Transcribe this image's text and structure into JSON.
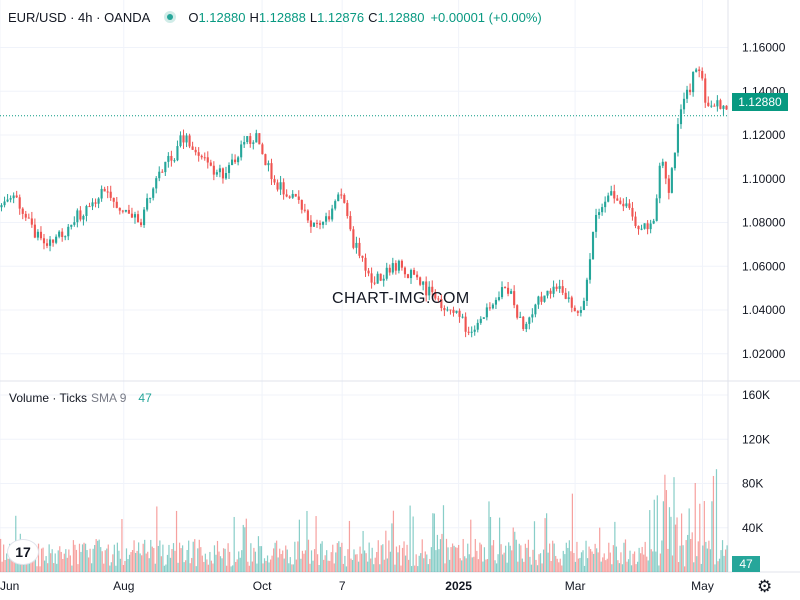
{
  "legend": {
    "symbol": "EUR/USD · 4h · OANDA",
    "o_label": "O",
    "o_value": "1.12880",
    "h_label": "H",
    "h_value": "1.12888",
    "l_label": "L",
    "l_value": "1.12876",
    "c_label": "C",
    "c_value": "1.12880",
    "change": "+0.00001 (+0.00%)"
  },
  "volume_legend": {
    "label": "Volume · Ticks",
    "sma": "SMA 9",
    "sma_value": "47"
  },
  "last_price_tag": "1.12880",
  "volume_tag": "47",
  "watermark": "CHART-IMG.COM",
  "logo_text": "17",
  "colors": {
    "up": "#26a69a",
    "down": "#ef5350",
    "accent": "#089981",
    "grid": "#f0f3fa"
  },
  "chart_data": {
    "type": "candlestick",
    "instrument": "EUR/USD",
    "timeframe": "4h",
    "source": "OANDA",
    "price_axis": {
      "ticks": [
        "1.16000",
        "1.14000",
        "1.12000",
        "1.10000",
        "1.08000",
        "1.06000",
        "1.04000",
        "1.02000"
      ],
      "values": [
        1.16,
        1.14,
        1.12,
        1.1,
        1.08,
        1.06,
        1.04,
        1.02
      ],
      "range": [
        1.008,
        1.168
      ]
    },
    "volume_axis": {
      "ticks": [
        "160K",
        "120K",
        "80K",
        "40K"
      ],
      "values": [
        160000,
        120000,
        80000,
        40000
      ],
      "range": [
        0,
        170000
      ]
    },
    "time_axis": {
      "labels": [
        "Jun",
        "Aug",
        "Oct",
        "7",
        "2025",
        "Mar",
        "May"
      ],
      "positions_frac": [
        0.0,
        0.17,
        0.36,
        0.47,
        0.63,
        0.79,
        0.965
      ]
    },
    "last_price": 1.1288,
    "close_path": [
      [
        0.0,
        1.087
      ],
      [
        0.02,
        1.09
      ],
      [
        0.04,
        1.078
      ],
      [
        0.06,
        1.07
      ],
      [
        0.08,
        1.073
      ],
      [
        0.1,
        1.082
      ],
      [
        0.12,
        1.087
      ],
      [
        0.14,
        1.095
      ],
      [
        0.16,
        1.088
      ],
      [
        0.18,
        1.085
      ],
      [
        0.19,
        1.078
      ],
      [
        0.2,
        1.09
      ],
      [
        0.22,
        1.103
      ],
      [
        0.24,
        1.112
      ],
      [
        0.25,
        1.12
      ],
      [
        0.27,
        1.11
      ],
      [
        0.29,
        1.105
      ],
      [
        0.31,
        1.102
      ],
      [
        0.33,
        1.115
      ],
      [
        0.35,
        1.12
      ],
      [
        0.36,
        1.11
      ],
      [
        0.38,
        1.098
      ],
      [
        0.4,
        1.093
      ],
      [
        0.42,
        1.082
      ],
      [
        0.44,
        1.078
      ],
      [
        0.46,
        1.088
      ],
      [
        0.47,
        1.093
      ],
      [
        0.48,
        1.075
      ],
      [
        0.5,
        1.06
      ],
      [
        0.51,
        1.052
      ],
      [
        0.53,
        1.058
      ],
      [
        0.55,
        1.06
      ],
      [
        0.57,
        1.055
      ],
      [
        0.59,
        1.048
      ],
      [
        0.61,
        1.042
      ],
      [
        0.63,
        1.038
      ],
      [
        0.65,
        1.028
      ],
      [
        0.66,
        1.035
      ],
      [
        0.68,
        1.045
      ],
      [
        0.7,
        1.05
      ],
      [
        0.72,
        1.03
      ],
      [
        0.73,
        1.04
      ],
      [
        0.75,
        1.048
      ],
      [
        0.77,
        1.052
      ],
      [
        0.78,
        1.045
      ],
      [
        0.8,
        1.04
      ],
      [
        0.81,
        1.06
      ],
      [
        0.82,
        1.083
      ],
      [
        0.84,
        1.092
      ],
      [
        0.86,
        1.088
      ],
      [
        0.87,
        1.082
      ],
      [
        0.89,
        1.076
      ],
      [
        0.9,
        1.082
      ],
      [
        0.91,
        1.11
      ],
      [
        0.92,
        1.09
      ],
      [
        0.93,
        1.118
      ],
      [
        0.94,
        1.135
      ],
      [
        0.95,
        1.14
      ],
      [
        0.96,
        1.155
      ],
      [
        0.97,
        1.138
      ],
      [
        0.98,
        1.132
      ],
      [
        0.99,
        1.135
      ],
      [
        1.0,
        1.1288
      ]
    ]
  }
}
